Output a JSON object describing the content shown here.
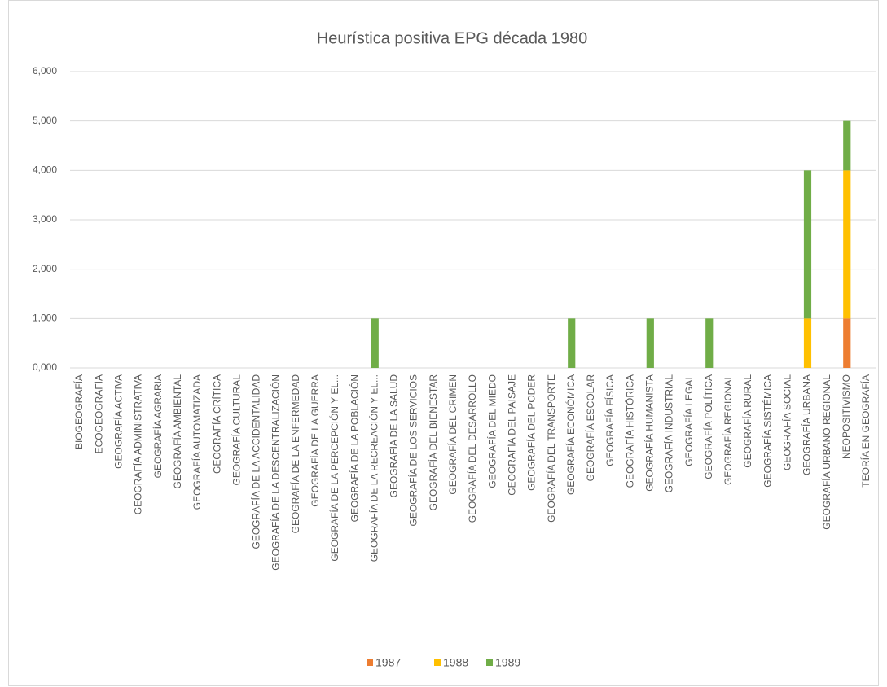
{
  "chart_data": {
    "type": "stacked_bar",
    "title": "Heurística positiva EPG década 1980",
    "categories": [
      "BIOGEOGRAFÍA",
      "ECOGEOGRAFÍA",
      "GEOGRAFÍA ACTIVA",
      "GEOGRAFÍA ADMINISTRATIVA",
      "GEOGRAFÍA AGRARIA",
      "GEOGRAFÍA AMBIENTAL",
      "GEOGRAFÍA AUTOMATIZADA",
      "GEOGRAFÍA CRÍTICA",
      "GEOGRAFÍA CULTURAL",
      "GEOGRAFÍA DE LA ACCIDENTALIDAD",
      "GEOGRAFÍA DE LA DESCENTRALIZACIÓN",
      "GEOGRAFÍA DE LA ENFERMEDAD",
      "GEOGRAFÍA DE LA GUERRA",
      "GEOGRAFÍA DE LA PERCEPCIÓN Y EL...",
      "GEOGRAFÍA DE LA POBLACIÓN",
      "GEOGRAFÍA DE LA RECREACIÓN Y EL...",
      "GEOGRAFÍA DE LA SALUD",
      "GEOGRAFÍA DE LOS SERVICIOS",
      "GEOGRAFÍA DEL BIENESTAR",
      "GEOGRAFÍA DEL CRIMEN",
      "GEOGRAFÍA DEL DESARROLLO",
      "GEOGRAFÍA DEL MIEDO",
      "GEOGRAFÍA DEL PAISAJE",
      "GEOGRAFÍA DEL PODER",
      "GEOGRAFÍA DEL TRANSPORTE",
      "GEOGRAFÍA ECONÓMICA",
      "GEOGRAFÍA ESCOLAR",
      "GEOGRAFÍA FÍSICA",
      "GEOGRAFÍA HISTÓRICA",
      "GEOGRAFÍA HUMANISTA",
      "GEOGRAFÍA INDUSTRIAL",
      "GEOGRAFÍA LEGAL",
      "GEOGRAFÍA POLÍTICA",
      "GEOGRAFÍA REGIONAL",
      "GEOGRAFÍA RURAL",
      "GEOGRAFÍA SISTÉMICA",
      "GEOGRAFÍA SOCIAL",
      "GEOGRAFÍA URBANA",
      "GEOGRAFÍA URBANO REGIONAL",
      "NEOPOSITIVISMO",
      "TEORÍA EN GEOGRAFÍA"
    ],
    "series": [
      {
        "name": "1987",
        "color": "#ed7d31",
        "values": [
          0,
          0,
          0,
          0,
          0,
          0,
          0,
          0,
          0,
          0,
          0,
          0,
          0,
          0,
          0,
          0,
          0,
          0,
          0,
          0,
          0,
          0,
          0,
          0,
          0,
          0,
          0,
          0,
          0,
          0,
          0,
          0,
          0,
          0,
          0,
          0,
          0,
          0,
          0,
          1,
          0
        ]
      },
      {
        "name": "1988",
        "color": "#ffc000",
        "values": [
          0,
          0,
          0,
          0,
          0,
          0,
          0,
          0,
          0,
          0,
          0,
          0,
          0,
          0,
          0,
          0,
          0,
          0,
          0,
          0,
          0,
          0,
          0,
          0,
          0,
          0,
          0,
          0,
          0,
          0,
          0,
          0,
          0,
          0,
          0,
          0,
          0,
          1,
          0,
          3,
          0
        ]
      },
      {
        "name": "1989",
        "color": "#70ad47",
        "values": [
          0,
          0,
          0,
          0,
          0,
          0,
          0,
          0,
          0,
          0,
          0,
          0,
          0,
          0,
          0,
          1,
          0,
          0,
          0,
          0,
          0,
          0,
          0,
          0,
          0,
          1,
          0,
          0,
          0,
          1,
          0,
          0,
          1,
          0,
          0,
          0,
          0,
          3,
          0,
          1,
          0
        ]
      }
    ],
    "ylim": [
      0,
      6
    ],
    "yticks": [
      {
        "value": 0,
        "label": "0,000"
      },
      {
        "value": 1,
        "label": "1,000"
      },
      {
        "value": 2,
        "label": "2,000"
      },
      {
        "value": 3,
        "label": "3,000"
      },
      {
        "value": 4,
        "label": "4,000"
      },
      {
        "value": 5,
        "label": "5,000"
      },
      {
        "value": 6,
        "label": "6,000"
      }
    ],
    "grid": true,
    "legend": "bottom"
  }
}
